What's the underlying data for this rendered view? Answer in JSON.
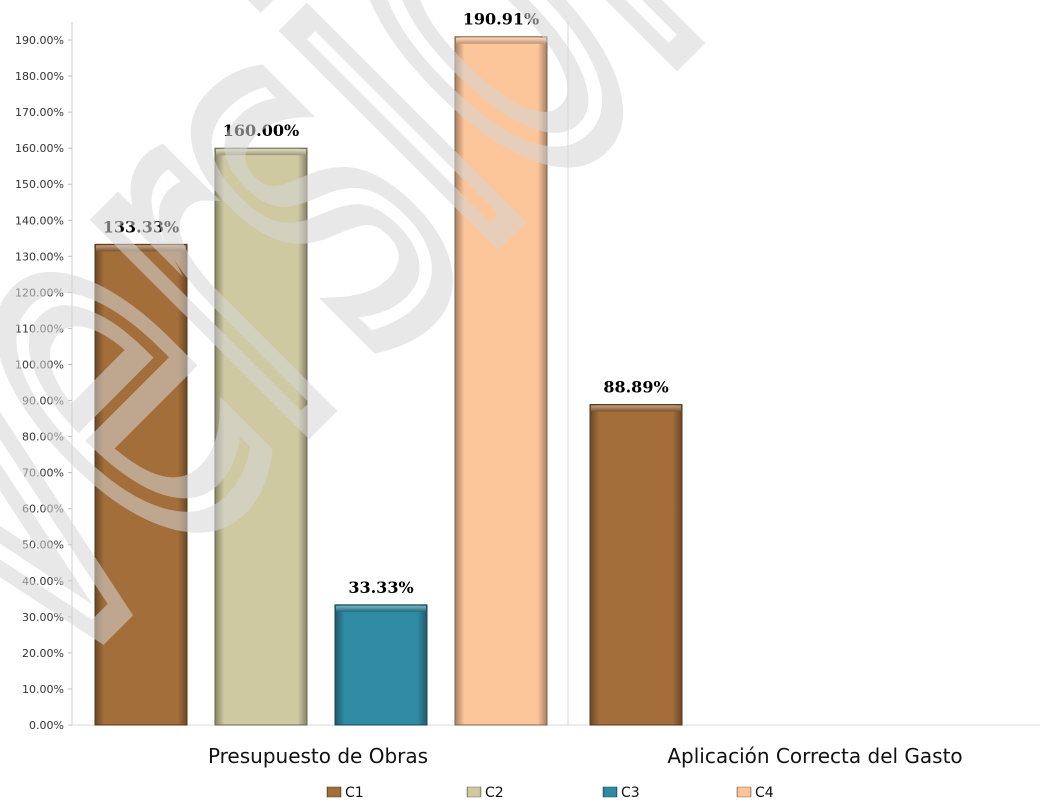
{
  "chart_data": {
    "type": "bar",
    "categories": [
      "Presupuesto de Obras",
      "Aplicación Correcta del Gasto"
    ],
    "series": [
      {
        "name": "C1",
        "color": "#a36e3a",
        "values": [
          133.33,
          88.89
        ],
        "labels": [
          "133.33%",
          "88.89%"
        ]
      },
      {
        "name": "C2",
        "color": "#cfc9a2",
        "values": [
          160.0,
          null
        ],
        "labels": [
          "160.00%",
          ""
        ]
      },
      {
        "name": "C3",
        "color": "#2f8aa3",
        "values": [
          33.33,
          null
        ],
        "labels": [
          "33.33%",
          ""
        ]
      },
      {
        "name": "C4",
        "color": "#fcc59a",
        "values": [
          190.91,
          null
        ],
        "labels": [
          "190.91%",
          ""
        ]
      }
    ],
    "ylim": [
      0,
      195
    ],
    "ytick_step": 10,
    "ytick_labels": [
      "0.00%",
      "10.00%",
      "20.00%",
      "30.00%",
      "40.00%",
      "50.00%",
      "60.00%",
      "70.00%",
      "80.00%",
      "90.00%",
      "100.00%",
      "110.00%",
      "120.00%",
      "130.00%",
      "140.00%",
      "150.00%",
      "160.00%",
      "170.00%",
      "180.00%",
      "190.00%"
    ],
    "grid": false,
    "legend_position": "bottom"
  },
  "watermark": "Versión"
}
